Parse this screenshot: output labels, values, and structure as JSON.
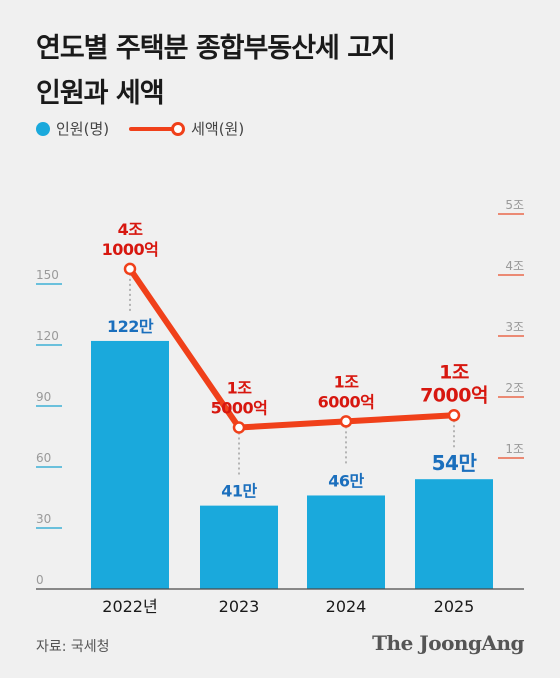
{
  "title_lines": [
    "연도별 주택분 종합부동산세 고지",
    "인원과 세액"
  ],
  "legend": {
    "bar": "인원(명)",
    "line": "세액(원)"
  },
  "source": "자료: 국세청",
  "logo": "The JoongAng",
  "colors": {
    "bar": "#1aa9dc",
    "line": "#f0401a",
    "label_blue": "#1b6fbd",
    "label_red": "#d7170f",
    "left_axis": "#3dafd6",
    "right_axis": "#e9694b"
  },
  "chart_data": {
    "type": "bar+line",
    "categories": [
      "2022년",
      "2023",
      "2024",
      "2025"
    ],
    "bars": {
      "values": [
        122,
        41,
        46,
        54
      ],
      "unit_note": "만",
      "labels": [
        "122만",
        "41만",
        "46만",
        "54만"
      ],
      "axis_ticks": [
        0,
        30,
        60,
        90,
        120,
        150
      ],
      "axis_tick_labels": [
        "0",
        "30",
        "60",
        "90",
        "120",
        "150"
      ],
      "ylim": [
        0,
        150
      ]
    },
    "line": {
      "values": [
        4.1,
        1.5,
        1.6,
        1.7
      ],
      "labels": [
        [
          "4조",
          "1000억"
        ],
        [
          "1조",
          "5000억"
        ],
        [
          "1조",
          "6000억"
        ],
        [
          "1조",
          "7000억"
        ]
      ],
      "axis_ticks": [
        1,
        2,
        3,
        4,
        5
      ],
      "axis_tick_labels": [
        "1조",
        "2조",
        "3조",
        "4조",
        "5조"
      ],
      "ylim": [
        0,
        5
      ]
    }
  }
}
